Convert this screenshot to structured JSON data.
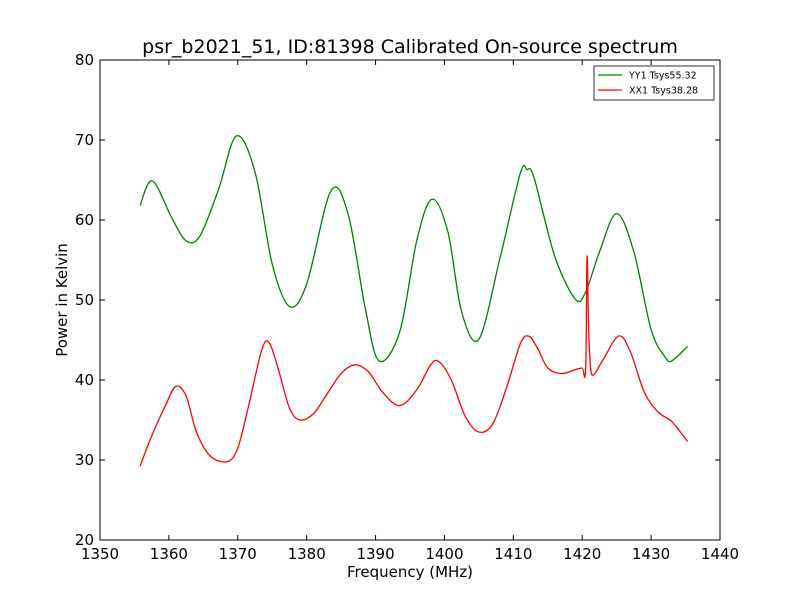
{
  "chart_data": {
    "type": "line",
    "title": "psr_b2021_51, ID:81398 Calibrated On-source spectrum",
    "xlabel": "Frequency (MHz)",
    "ylabel": "Power in Kelvin",
    "xlim": [
      1350,
      1440
    ],
    "ylim": [
      20,
      80
    ],
    "xticks": [
      1350,
      1360,
      1370,
      1380,
      1390,
      1400,
      1410,
      1420,
      1430,
      1440
    ],
    "yticks": [
      20,
      30,
      40,
      50,
      60,
      70,
      80
    ],
    "grid": false,
    "legend_position": "top-right",
    "series": [
      {
        "name": "YY1 Tsys55.32",
        "color": "#008000",
        "x": [
          1355.8,
          1357.6,
          1360.4,
          1362.5,
          1364.5,
          1367.2,
          1369.8,
          1372.5,
          1375.0,
          1377.5,
          1380.0,
          1383.5,
          1386.0,
          1388.5,
          1390.5,
          1393.5,
          1396.0,
          1398.2,
          1400.5,
          1402.5,
          1405.0,
          1408.0,
          1411.0,
          1412.0,
          1413.0,
          1416.0,
          1419.0,
          1420.5,
          1422.5,
          1425.0,
          1427.5,
          1430.0,
          1432.0,
          1433.0,
          1435.3
        ],
        "y": [
          61.8,
          64.9,
          60.3,
          57.4,
          58.0,
          63.8,
          70.5,
          66.0,
          54.5,
          49.2,
          52.0,
          63.6,
          60.8,
          49.0,
          42.4,
          46.0,
          57.5,
          62.6,
          58.5,
          48.5,
          45.1,
          55.0,
          65.8,
          66.3,
          65.3,
          55.5,
          50.1,
          51.0,
          56.0,
          60.8,
          56.0,
          46.3,
          42.9,
          42.4,
          44.2
        ]
      },
      {
        "name": "XX1 Tsys38.28",
        "color": "#ff0000",
        "x": [
          1355.8,
          1357.5,
          1359.5,
          1361.0,
          1362.5,
          1364.0,
          1366.0,
          1368.5,
          1370.0,
          1371.5,
          1373.5,
          1374.6,
          1376.0,
          1377.5,
          1379.0,
          1381.0,
          1383.0,
          1385.0,
          1387.0,
          1389.0,
          1391.0,
          1393.5,
          1396.0,
          1398.0,
          1399.2,
          1401.0,
          1403.0,
          1405.0,
          1407.0,
          1409.0,
          1411.0,
          1412.2,
          1413.5,
          1415.0,
          1417.0,
          1419.0,
          1420.0,
          1420.5,
          1420.7,
          1420.9,
          1421.1,
          1421.5,
          1423.0,
          1425.3,
          1427.0,
          1429.0,
          1431.0,
          1433.0,
          1435.3
        ],
        "y": [
          29.2,
          33.0,
          36.8,
          39.2,
          38.0,
          33.5,
          30.5,
          29.8,
          31.5,
          36.5,
          43.8,
          44.6,
          41.0,
          36.5,
          35.0,
          35.8,
          38.3,
          40.8,
          41.9,
          41.0,
          38.5,
          36.8,
          38.8,
          41.9,
          42.3,
          40.0,
          35.5,
          33.5,
          34.5,
          39.0,
          44.5,
          45.5,
          44.0,
          41.5,
          40.8,
          41.3,
          41.5,
          41.3,
          55.4,
          47.5,
          43.0,
          40.6,
          42.5,
          45.5,
          43.5,
          38.5,
          36.0,
          34.8,
          32.3
        ]
      }
    ]
  }
}
